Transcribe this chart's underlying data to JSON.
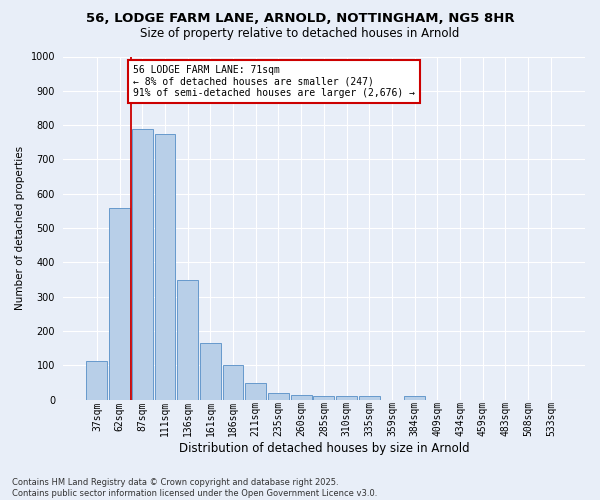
{
  "title_line1": "56, LODGE FARM LANE, ARNOLD, NOTTINGHAM, NG5 8HR",
  "title_line2": "Size of property relative to detached houses in Arnold",
  "xlabel": "Distribution of detached houses by size in Arnold",
  "ylabel": "Number of detached properties",
  "categories": [
    "37sqm",
    "62sqm",
    "87sqm",
    "111sqm",
    "136sqm",
    "161sqm",
    "186sqm",
    "211sqm",
    "235sqm",
    "260sqm",
    "285sqm",
    "310sqm",
    "335sqm",
    "359sqm",
    "384sqm",
    "409sqm",
    "434sqm",
    "459sqm",
    "483sqm",
    "508sqm",
    "533sqm"
  ],
  "values": [
    112,
    560,
    790,
    775,
    350,
    165,
    100,
    50,
    20,
    15,
    12,
    10,
    10,
    0,
    10,
    0,
    0,
    0,
    0,
    0,
    0
  ],
  "bar_color": "#b8cfe8",
  "bar_edge_color": "#6699cc",
  "bar_linewidth": 0.7,
  "reference_line_color": "#cc0000",
  "reference_line_x": 1.5,
  "annotation_text": "56 LODGE FARM LANE: 71sqm\n← 8% of detached houses are smaller (247)\n91% of semi-detached houses are larger (2,676) →",
  "annotation_box_color": "#cc0000",
  "ylim": [
    0,
    1000
  ],
  "yticks": [
    0,
    100,
    200,
    300,
    400,
    500,
    600,
    700,
    800,
    900,
    1000
  ],
  "footer_line1": "Contains HM Land Registry data © Crown copyright and database right 2025.",
  "footer_line2": "Contains public sector information licensed under the Open Government Licence v3.0.",
  "background_color": "#e8eef8",
  "plot_bg_color": "#e8eef8",
  "grid_color": "#ffffff",
  "title1_fontsize": 9.5,
  "title2_fontsize": 8.5,
  "xlabel_fontsize": 8.5,
  "ylabel_fontsize": 7.5,
  "tick_fontsize": 7,
  "annotation_fontsize": 7,
  "footer_fontsize": 6
}
